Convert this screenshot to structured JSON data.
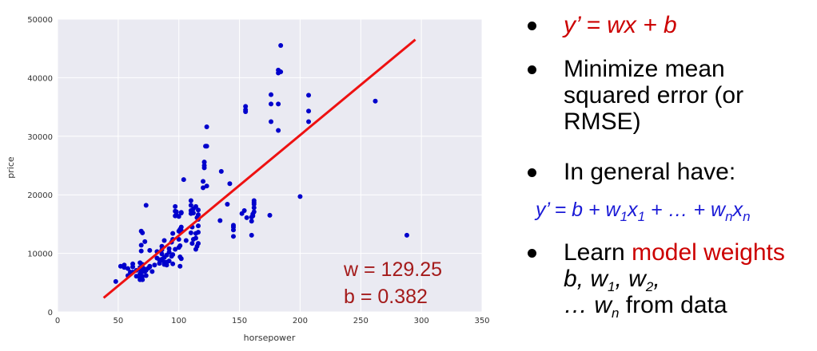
{
  "chart_data": {
    "type": "scatter",
    "xlabel": "horsepower",
    "ylabel": "price",
    "xlim": [
      0,
      350
    ],
    "ylim": [
      0,
      50000
    ],
    "xticks": [
      0,
      50,
      100,
      150,
      200,
      250,
      300,
      350
    ],
    "yticks": [
      0,
      10000,
      20000,
      30000,
      40000,
      50000
    ],
    "grid": true,
    "background": "#eaeaf2",
    "point_color": "#0000cc",
    "line_color": "#ee1111",
    "fit_line": {
      "x": [
        38,
        295
      ],
      "y": [
        2400,
        46500
      ]
    },
    "annotations": [
      "w = 129.25",
      "b = 0.382"
    ],
    "points": {
      "x": [
        48,
        52,
        55,
        55,
        58,
        58,
        60,
        62,
        62,
        62,
        65,
        65,
        68,
        68,
        68,
        68,
        68,
        68,
        69,
        69,
        69,
        70,
        70,
        70,
        70,
        70,
        70,
        72,
        72,
        72,
        73,
        73,
        73,
        75,
        76,
        76,
        76,
        78,
        80,
        82,
        82,
        84,
        84,
        85,
        86,
        86,
        86,
        86,
        88,
        88,
        88,
        88,
        90,
        90,
        90,
        92,
        92,
        92,
        94,
        94,
        95,
        95,
        95,
        95,
        97,
        97,
        97,
        97,
        98,
        98,
        100,
        100,
        100,
        100,
        101,
        101,
        101,
        101,
        101,
        102,
        102,
        102,
        102,
        102,
        104,
        106,
        110,
        110,
        110,
        110,
        110,
        111,
        111,
        111,
        112,
        112,
        112,
        114,
        114,
        114,
        114,
        115,
        115,
        116,
        116,
        116,
        116,
        116,
        116,
        120,
        120,
        121,
        121,
        121,
        122,
        123,
        123,
        123,
        134,
        135,
        140,
        142,
        145,
        145,
        145,
        145,
        152,
        154,
        155,
        155,
        155,
        156,
        160,
        160,
        160,
        161,
        161,
        162,
        162,
        162,
        162,
        162,
        175,
        176,
        176,
        176,
        182,
        182,
        182,
        182,
        184,
        184,
        200,
        207,
        207,
        207,
        262,
        288
      ],
      "y": [
        5200,
        7800,
        7600,
        8000,
        6200,
        7400,
        6800,
        6800,
        7700,
        8200,
        6100,
        7100,
        5500,
        5800,
        6500,
        7200,
        7600,
        8400,
        10400,
        11400,
        13800,
        5500,
        6100,
        6900,
        7600,
        8100,
        13500,
        6900,
        7300,
        12000,
        6200,
        7100,
        18200,
        7500,
        7700,
        7800,
        10500,
        6900,
        8000,
        9200,
        10300,
        8300,
        8900,
        8800,
        9000,
        9900,
        10600,
        11200,
        8100,
        8500,
        9300,
        12200,
        8000,
        8500,
        9700,
        8700,
        10200,
        10800,
        9500,
        11900,
        8200,
        9800,
        12400,
        13400,
        10700,
        16400,
        17200,
        18000,
        16600,
        17100,
        11000,
        12400,
        13800,
        16300,
        7800,
        9400,
        11300,
        13700,
        14100,
        16900,
        17000,
        13900,
        9100,
        14500,
        22600,
        12200,
        13500,
        16800,
        17300,
        18200,
        19000,
        11700,
        14500,
        16900,
        12400,
        16900,
        17600,
        10700,
        12600,
        13400,
        18000,
        11200,
        16100,
        11700,
        13600,
        14700,
        15800,
        16600,
        17400,
        21200,
        22300,
        24600,
        25000,
        25600,
        28300,
        28300,
        31600,
        21500,
        15600,
        24000,
        18400,
        21900,
        12900,
        14000,
        14500,
        14800,
        16800,
        17300,
        34200,
        34500,
        35100,
        16100,
        13100,
        15500,
        16200,
        16400,
        16700,
        17100,
        17800,
        18400,
        18700,
        19000,
        16500,
        32500,
        35500,
        37100,
        31000,
        35500,
        40800,
        41300,
        41000,
        45500,
        19700,
        32500,
        34300,
        37000,
        36000,
        13100
      ]
    }
  },
  "bullets": {
    "b1": {
      "formula": "y’ = wx + b"
    },
    "b2": {
      "text": "Minimize mean squared error (or RMSE)"
    },
    "b3": {
      "text": "In general have:"
    },
    "formula": {
      "lhs": "y’ = b + w",
      "sub1": "1",
      "x1": "x",
      "sub1b": "1",
      "mid": " + … + w",
      "subn": "n",
      "xn": "x",
      "subnb": "n"
    },
    "b4": {
      "learn": "Learn ",
      "model": "model weights",
      "part_b": " b, w",
      "sub1": "1",
      "part_w2": ", w",
      "sub2": "2",
      "part_comma": ",",
      "ellipsis_w": "… w",
      "subn": "n",
      "tail": " from data"
    }
  }
}
